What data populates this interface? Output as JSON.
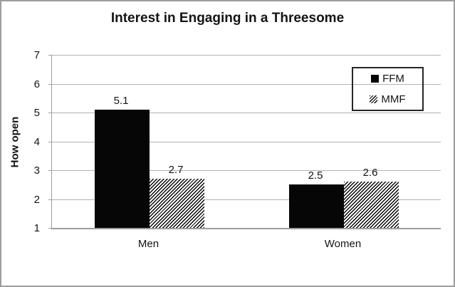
{
  "chart_data": {
    "type": "bar",
    "title": "Interest in Engaging in a Threesome",
    "xlabel": "",
    "ylabel": "How open",
    "categories": [
      "Men",
      "Women"
    ],
    "series": [
      {
        "name": "FFM",
        "style": "solid",
        "values": [
          5.1,
          2.5
        ]
      },
      {
        "name": "MMF",
        "style": "hatched",
        "values": [
          2.7,
          2.6
        ]
      }
    ],
    "data_labels": [
      [
        "5.1",
        "2.5"
      ],
      [
        "2.7",
        "2.6"
      ]
    ],
    "ylim": [
      1,
      7
    ],
    "yticks": [
      1,
      2,
      3,
      4,
      5,
      6,
      7
    ],
    "grid": true,
    "legend_position": "top-right",
    "colors": {
      "bar_fill": "#060606",
      "gridline": "#b2b2b2",
      "axis_line": "#9d9d9d",
      "text": "#141414",
      "background": "#ffffff",
      "outer_border": "#9d9d9d",
      "legend_border": "#262626"
    }
  }
}
